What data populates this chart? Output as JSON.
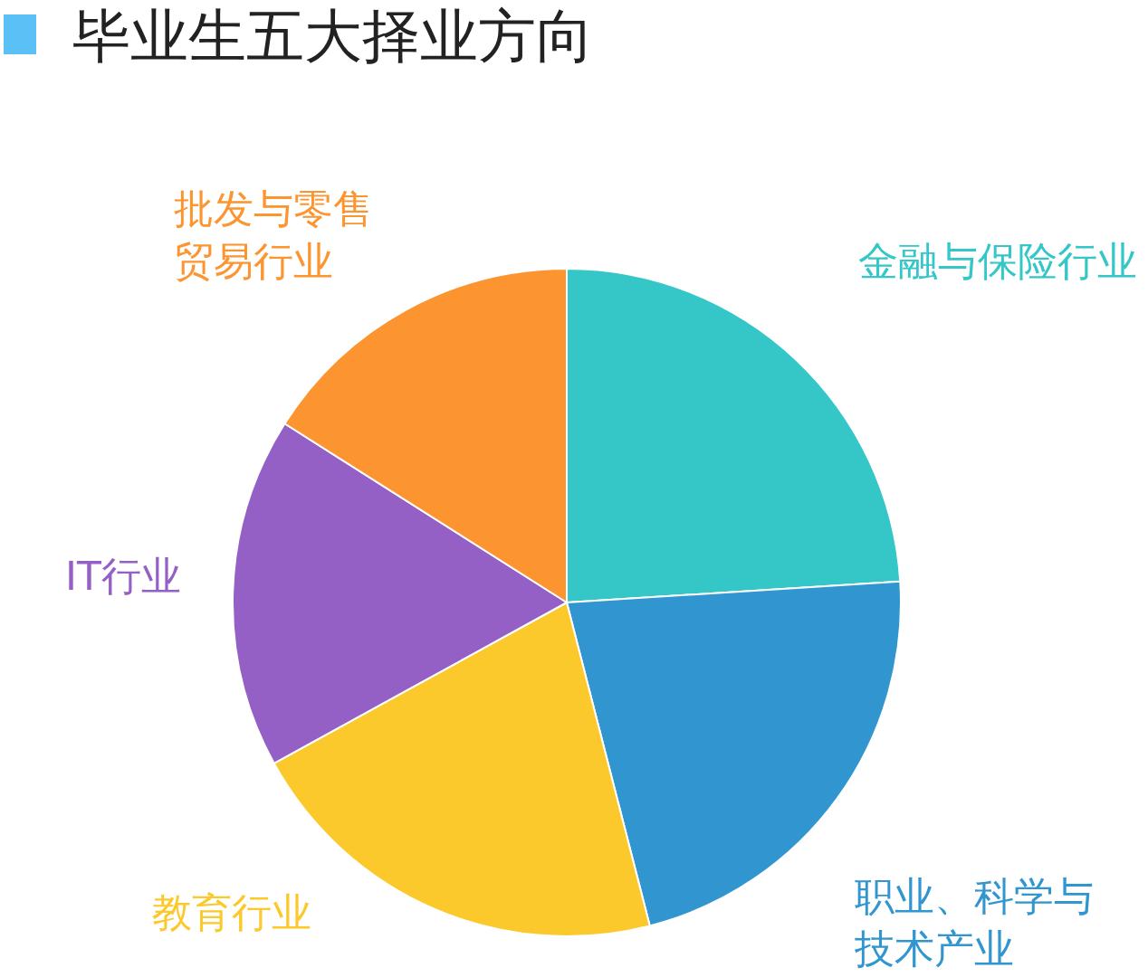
{
  "chart_data": {
    "type": "pie",
    "title": "毕业生五大择业方向",
    "categories": [
      "金融与保险行业",
      "职业、科学与技术产业",
      "教育行业",
      "IT行业",
      "批发与零售贸易行业"
    ],
    "values": [
      24,
      22,
      21,
      17,
      16
    ],
    "colors": [
      "#35c6c8",
      "#3196cf",
      "#fcc92c",
      "#9460c6",
      "#fc9530"
    ]
  }
}
